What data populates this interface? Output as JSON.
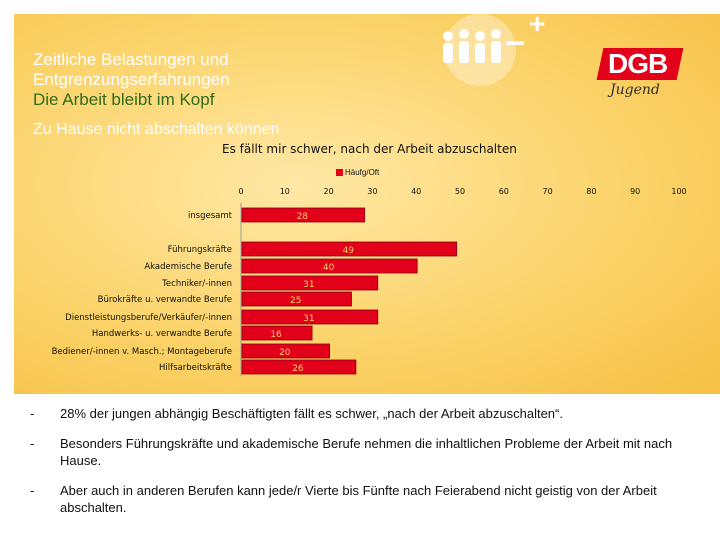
{
  "header": {
    "title_lines": [
      "Zeitliche Belastungen und",
      "Entgrenzungserfahrungen",
      "Die Arbeit bleibt im Kopf"
    ],
    "subtitle": "Zu Hause nicht abschalten können"
  },
  "logo": {
    "dgb": "DGB",
    "jugend": "Jugend",
    "minus": "–",
    "plus": "+"
  },
  "chart_data": {
    "type": "bar",
    "orientation": "horizontal",
    "title": "Es fällt mir schwer, nach der Arbeit abzuschalten",
    "legend": [
      "Häufg/Oft"
    ],
    "xlim": [
      0,
      100
    ],
    "x_ticks": [
      "0",
      "10",
      "20",
      "30",
      "40",
      "50",
      "60",
      "70",
      "80",
      "90",
      "100"
    ],
    "categories": [
      "insgesamt",
      "Führungskräfte",
      "Akademische Berufe",
      "Techniker/-innen",
      "Bürokräfte u. verwandte Berufe",
      "Dienstleistungsberufe/Verkäufer/-innen",
      "Handwerks- u. verwandte Berufe",
      "Bediener/-innen v. Masch.; Montageberufe",
      "Hilfsarbeitskräfte"
    ],
    "series": [
      {
        "name": "Häufg/Oft",
        "values": [
          28,
          49,
          40,
          31,
          25,
          31,
          16,
          20,
          26
        ]
      }
    ],
    "color": "#e2001a"
  },
  "bullets": [
    {
      "dash": "-",
      "text": "28% der jungen abhängig Beschäftigten fällt es schwer, „nach der Arbeit abzuschalten“."
    },
    {
      "dash": "-",
      "text": "Besonders Führungskräfte und akademische Berufe nehmen die inhaltlichen Probleme der Arbeit mit nach Hause."
    },
    {
      "dash": "-",
      "text": "Aber auch in anderen Berufen kann jede/r Vierte bis Fünfte nach Feierabend nicht geistig von der Arbeit abschalten."
    }
  ]
}
